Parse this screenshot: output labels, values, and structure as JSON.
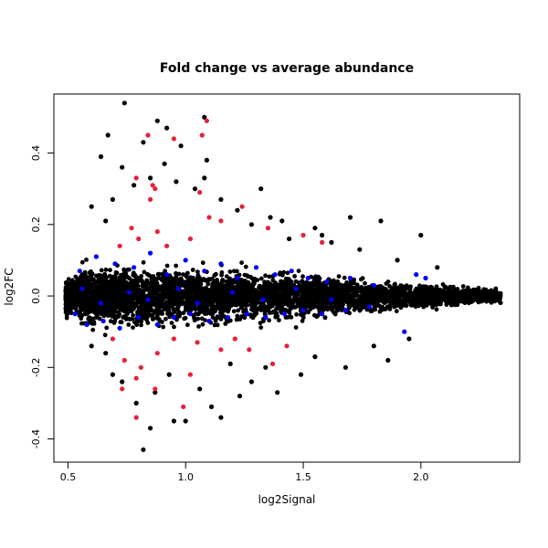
{
  "chart_data": {
    "type": "scatter",
    "title": "Fold change vs average abundance",
    "xlabel": "log2Signal",
    "ylabel": "log2FC",
    "xlim": [
      0.44,
      2.42
    ],
    "ylim": [
      -0.465,
      0.565
    ],
    "x_ticks": [
      {
        "value": 0.5,
        "label": "0.5"
      },
      {
        "value": 1.0,
        "label": "1.0"
      },
      {
        "value": 1.5,
        "label": "1.5"
      },
      {
        "value": 2.0,
        "label": "2.0"
      }
    ],
    "y_ticks": [
      {
        "value": -0.4,
        "label": "-0.4"
      },
      {
        "value": -0.2,
        "label": "-0.2"
      },
      {
        "value": 0.0,
        "label": "0.0"
      },
      {
        "value": 0.2,
        "label": "0.2"
      },
      {
        "value": 0.4,
        "label": "0.4"
      }
    ],
    "grid": false,
    "legend": "none",
    "series": [
      {
        "color": "#000000",
        "points": [
          [
            0.74,
            0.54
          ],
          [
            0.88,
            0.49
          ],
          [
            0.92,
            0.47
          ],
          [
            1.08,
            0.5
          ],
          [
            0.82,
            0.43
          ],
          [
            0.98,
            0.42
          ],
          [
            0.67,
            0.45
          ],
          [
            0.64,
            0.39
          ],
          [
            0.91,
            0.37
          ],
          [
            1.09,
            0.38
          ],
          [
            0.73,
            0.36
          ],
          [
            1.08,
            0.33
          ],
          [
            1.32,
            0.3
          ],
          [
            1.7,
            0.22
          ],
          [
            1.83,
            0.21
          ],
          [
            2.0,
            0.17
          ],
          [
            0.85,
            0.33
          ],
          [
            0.96,
            0.32
          ],
          [
            1.04,
            0.3
          ],
          [
            0.78,
            0.31
          ],
          [
            0.69,
            0.27
          ],
          [
            1.15,
            0.27
          ],
          [
            1.22,
            0.24
          ],
          [
            1.36,
            0.22
          ],
          [
            1.41,
            0.21
          ],
          [
            1.55,
            0.19
          ],
          [
            1.58,
            0.17
          ],
          [
            0.6,
            0.25
          ],
          [
            0.66,
            0.21
          ],
          [
            1.28,
            0.2
          ],
          [
            1.44,
            0.16
          ],
          [
            1.62,
            0.15
          ],
          [
            1.74,
            0.13
          ],
          [
            1.9,
            0.1
          ],
          [
            2.07,
            0.08
          ],
          [
            0.82,
            -0.43
          ],
          [
            0.85,
            -0.37
          ],
          [
            0.95,
            -0.35
          ],
          [
            1.0,
            -0.35
          ],
          [
            1.15,
            -0.34
          ],
          [
            0.79,
            -0.3
          ],
          [
            0.87,
            -0.27
          ],
          [
            1.11,
            -0.31
          ],
          [
            1.23,
            -0.28
          ],
          [
            1.39,
            -0.27
          ],
          [
            1.28,
            -0.24
          ],
          [
            1.49,
            -0.22
          ],
          [
            1.68,
            -0.2
          ],
          [
            1.86,
            -0.18
          ],
          [
            0.73,
            -0.24
          ],
          [
            0.69,
            -0.22
          ],
          [
            1.06,
            -0.26
          ],
          [
            1.34,
            -0.2
          ],
          [
            1.55,
            -0.17
          ],
          [
            1.8,
            -0.14
          ],
          [
            1.95,
            -0.12
          ],
          [
            0.93,
            -0.22
          ],
          [
            0.6,
            -0.14
          ],
          [
            0.66,
            -0.16
          ],
          [
            1.19,
            -0.19
          ]
        ]
      },
      {
        "color": "#0000ff",
        "points": [
          [
            0.55,
            0.07
          ],
          [
            0.62,
            0.11
          ],
          [
            0.7,
            0.09
          ],
          [
            0.78,
            0.08
          ],
          [
            0.85,
            0.12
          ],
          [
            0.92,
            0.06
          ],
          [
            1.0,
            0.1
          ],
          [
            1.08,
            0.07
          ],
          [
            1.15,
            0.09
          ],
          [
            1.22,
            0.05
          ],
          [
            1.3,
            0.08
          ],
          [
            1.38,
            0.06
          ],
          [
            1.45,
            0.07
          ],
          [
            1.52,
            0.05
          ],
          [
            1.6,
            0.04
          ],
          [
            1.7,
            0.05
          ],
          [
            1.8,
            0.03
          ],
          [
            1.98,
            0.06
          ],
          [
            2.02,
            0.05
          ],
          [
            0.53,
            -0.05
          ],
          [
            0.58,
            -0.08
          ],
          [
            0.65,
            -0.07
          ],
          [
            0.72,
            -0.09
          ],
          [
            0.8,
            -0.06
          ],
          [
            0.88,
            -0.08
          ],
          [
            0.95,
            -0.06
          ],
          [
            1.02,
            -0.05
          ],
          [
            1.1,
            -0.07
          ],
          [
            1.18,
            -0.06
          ],
          [
            1.26,
            -0.05
          ],
          [
            1.34,
            -0.06
          ],
          [
            1.42,
            -0.05
          ],
          [
            1.5,
            -0.04
          ],
          [
            1.58,
            -0.05
          ],
          [
            1.68,
            -0.04
          ],
          [
            1.78,
            -0.03
          ],
          [
            1.93,
            -0.1
          ],
          [
            0.56,
            0.02
          ],
          [
            0.64,
            -0.02
          ],
          [
            0.76,
            0.01
          ],
          [
            0.84,
            -0.01
          ],
          [
            0.97,
            0.02
          ],
          [
            1.05,
            -0.02
          ],
          [
            1.2,
            0.01
          ],
          [
            1.33,
            -0.01
          ],
          [
            1.47,
            0.02
          ],
          [
            1.62,
            -0.01
          ]
        ]
      },
      {
        "color": "#e8203a",
        "points": [
          [
            0.84,
            0.45
          ],
          [
            0.95,
            0.44
          ],
          [
            1.09,
            0.49
          ],
          [
            1.07,
            0.45
          ],
          [
            0.79,
            0.33
          ],
          [
            0.86,
            0.31
          ],
          [
            0.87,
            0.3
          ],
          [
            1.06,
            0.29
          ],
          [
            0.85,
            0.27
          ],
          [
            1.24,
            0.25
          ],
          [
            1.1,
            0.22
          ],
          [
            1.15,
            0.21
          ],
          [
            0.77,
            0.19
          ],
          [
            0.88,
            0.18
          ],
          [
            1.35,
            0.19
          ],
          [
            1.5,
            0.17
          ],
          [
            1.58,
            0.15
          ],
          [
            0.8,
            0.16
          ],
          [
            0.72,
            0.14
          ],
          [
            0.92,
            0.14
          ],
          [
            1.02,
            0.16
          ],
          [
            0.79,
            -0.34
          ],
          [
            0.99,
            -0.31
          ],
          [
            0.87,
            -0.26
          ],
          [
            0.73,
            -0.26
          ],
          [
            0.79,
            -0.23
          ],
          [
            0.81,
            -0.2
          ],
          [
            1.02,
            -0.22
          ],
          [
            1.37,
            -0.19
          ],
          [
            1.15,
            -0.15
          ],
          [
            0.74,
            -0.18
          ],
          [
            0.88,
            -0.16
          ],
          [
            1.27,
            -0.15
          ],
          [
            1.43,
            -0.14
          ],
          [
            0.69,
            -0.12
          ],
          [
            0.95,
            -0.12
          ],
          [
            1.05,
            -0.13
          ],
          [
            1.21,
            -0.12
          ]
        ]
      }
    ]
  }
}
